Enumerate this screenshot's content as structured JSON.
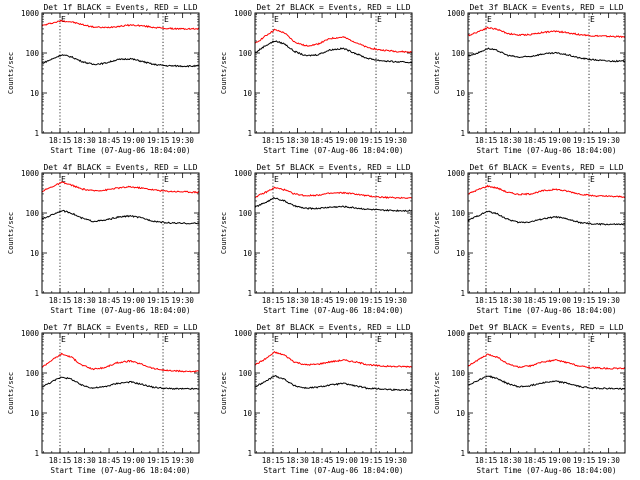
{
  "chart_data": [
    {
      "type": "line",
      "title": "Det 1f BLACK = Events, RED = LLD",
      "ylabel": "Counts/sec",
      "xlabel": "Start Time (07-Aug-06 18:04:00)",
      "x_ticks": [
        "18:15",
        "18:30",
        "18:45",
        "19:00",
        "19:15",
        "19:30"
      ],
      "y_ticks": [
        "1",
        "10",
        "100",
        "1000"
      ],
      "ylim": [
        1,
        1000
      ],
      "yscale": "log",
      "x_range": [
        "18:04",
        "19:40"
      ],
      "markers": [
        {
          "x": "18:15",
          "label": "E"
        },
        {
          "x": "19:18",
          "label": "E"
        }
      ],
      "series": [
        {
          "name": "LLD",
          "color": "#ff0000",
          "x": [
            "18:04",
            "18:10",
            "18:16",
            "18:22",
            "18:28",
            "18:35",
            "18:42",
            "18:50",
            "18:58",
            "19:05",
            "19:12",
            "19:20",
            "19:30",
            "19:40"
          ],
          "y": [
            480,
            560,
            640,
            600,
            520,
            450,
            430,
            460,
            500,
            480,
            440,
            410,
            400,
            400
          ]
        },
        {
          "name": "Events",
          "color": "#000000",
          "x": [
            "18:04",
            "18:10",
            "18:16",
            "18:22",
            "18:28",
            "18:35",
            "18:42",
            "18:50",
            "18:58",
            "19:05",
            "19:12",
            "19:20",
            "19:30",
            "19:40"
          ],
          "y": [
            55,
            70,
            90,
            80,
            62,
            52,
            55,
            68,
            72,
            62,
            52,
            48,
            47,
            47
          ]
        }
      ]
    },
    {
      "type": "line",
      "title": "Det 2f BLACK = Events, RED = LLD",
      "ylabel": "Counts/sec",
      "xlabel": "Start Time (07-Aug-06 18:04:00)",
      "x_ticks": [
        "18:15",
        "18:30",
        "18:45",
        "19:00",
        "19:15",
        "19:30"
      ],
      "y_ticks": [
        "1",
        "10",
        "100",
        "1000"
      ],
      "ylim": [
        1,
        1000
      ],
      "yscale": "log",
      "x_range": [
        "18:04",
        "19:40"
      ],
      "markers": [
        {
          "x": "18:15",
          "label": "E"
        },
        {
          "x": "19:18",
          "label": "E"
        }
      ],
      "series": [
        {
          "name": "LLD",
          "color": "#ff0000",
          "x": [
            "18:04",
            "18:10",
            "18:16",
            "18:22",
            "18:28",
            "18:35",
            "18:42",
            "18:50",
            "18:58",
            "19:05",
            "19:12",
            "19:20",
            "19:30",
            "19:40"
          ],
          "y": [
            170,
            260,
            380,
            320,
            190,
            150,
            165,
            230,
            250,
            190,
            140,
            120,
            110,
            105
          ]
        },
        {
          "name": "Events",
          "color": "#000000",
          "x": [
            "18:04",
            "18:10",
            "18:16",
            "18:22",
            "18:28",
            "18:35",
            "18:42",
            "18:50",
            "18:58",
            "19:05",
            "19:12",
            "19:20",
            "19:30",
            "19:40"
          ],
          "y": [
            100,
            150,
            200,
            170,
            110,
            85,
            90,
            120,
            130,
            100,
            75,
            65,
            60,
            58
          ]
        }
      ]
    },
    {
      "type": "line",
      "title": "Det 3f BLACK = Events, RED = LLD",
      "ylabel": "Counts/sec",
      "xlabel": "Start Time (07-Aug-06 18:04:00)",
      "x_ticks": [
        "18:15",
        "18:30",
        "18:45",
        "19:00",
        "19:15",
        "19:30"
      ],
      "y_ticks": [
        "1",
        "10",
        "100",
        "1000"
      ],
      "ylim": [
        1,
        1000
      ],
      "yscale": "log",
      "x_range": [
        "18:04",
        "19:40"
      ],
      "markers": [
        {
          "x": "18:15",
          "label": "E"
        },
        {
          "x": "19:18",
          "label": "E"
        }
      ],
      "series": [
        {
          "name": "LLD",
          "color": "#ff0000",
          "x": [
            "18:04",
            "18:10",
            "18:16",
            "18:22",
            "18:28",
            "18:35",
            "18:42",
            "18:50",
            "18:58",
            "19:05",
            "19:12",
            "19:20",
            "19:30",
            "19:40"
          ],
          "y": [
            270,
            340,
            430,
            390,
            310,
            280,
            290,
            330,
            350,
            320,
            290,
            270,
            260,
            255
          ]
        },
        {
          "name": "Events",
          "color": "#000000",
          "x": [
            "18:04",
            "18:10",
            "18:16",
            "18:22",
            "18:28",
            "18:35",
            "18:42",
            "18:50",
            "18:58",
            "19:05",
            "19:12",
            "19:20",
            "19:30",
            "19:40"
          ],
          "y": [
            85,
            100,
            130,
            115,
            88,
            78,
            82,
            95,
            100,
            90,
            75,
            68,
            63,
            62
          ]
        }
      ]
    },
    {
      "type": "line",
      "title": "Det 4f BLACK = Events, RED = LLD",
      "ylabel": "Counts/sec",
      "xlabel": "Start Time (07-Aug-06 18:04:00)",
      "x_ticks": [
        "18:15",
        "18:30",
        "18:45",
        "19:00",
        "19:15",
        "19:30"
      ],
      "y_ticks": [
        "1",
        "10",
        "100",
        "1000"
      ],
      "ylim": [
        1,
        1000
      ],
      "yscale": "log",
      "x_range": [
        "18:04",
        "19:40"
      ],
      "markers": [
        {
          "x": "18:15",
          "label": "E"
        },
        {
          "x": "19:18",
          "label": "E"
        }
      ],
      "series": [
        {
          "name": "LLD",
          "color": "#ff0000",
          "x": [
            "18:04",
            "18:10",
            "18:16",
            "18:22",
            "18:28",
            "18:35",
            "18:42",
            "18:50",
            "18:58",
            "19:05",
            "19:12",
            "19:20",
            "19:30",
            "19:40"
          ],
          "y": [
            350,
            450,
            580,
            500,
            400,
            360,
            370,
            420,
            450,
            420,
            380,
            350,
            340,
            330
          ]
        },
        {
          "name": "Events",
          "color": "#000000",
          "x": [
            "18:04",
            "18:10",
            "18:16",
            "18:22",
            "18:28",
            "18:35",
            "18:42",
            "18:50",
            "18:58",
            "19:05",
            "19:12",
            "19:20",
            "19:30",
            "19:40"
          ],
          "y": [
            70,
            90,
            115,
            100,
            75,
            62,
            65,
            78,
            85,
            75,
            63,
            57,
            55,
            55
          ]
        }
      ]
    },
    {
      "type": "line",
      "title": "Det 5f BLACK = Events, RED = LLD",
      "ylabel": "Counts/sec",
      "xlabel": "Start Time (07-Aug-06 18:04:00)",
      "x_ticks": [
        "18:15",
        "18:30",
        "18:45",
        "19:00",
        "19:15",
        "19:30"
      ],
      "y_ticks": [
        "1",
        "10",
        "100",
        "1000"
      ],
      "ylim": [
        1,
        1000
      ],
      "yscale": "log",
      "x_range": [
        "18:04",
        "19:40"
      ],
      "markers": [
        {
          "x": "18:15",
          "label": "E"
        },
        {
          "x": "19:18",
          "label": "E"
        }
      ],
      "series": [
        {
          "name": "LLD",
          "color": "#ff0000",
          "x": [
            "18:04",
            "18:10",
            "18:16",
            "18:22",
            "18:28",
            "18:35",
            "18:42",
            "18:50",
            "18:58",
            "19:05",
            "19:12",
            "19:20",
            "19:30",
            "19:40"
          ],
          "y": [
            250,
            320,
            430,
            380,
            300,
            270,
            280,
            310,
            320,
            300,
            270,
            250,
            240,
            240
          ]
        },
        {
          "name": "Events",
          "color": "#000000",
          "x": [
            "18:04",
            "18:10",
            "18:16",
            "18:22",
            "18:28",
            "18:35",
            "18:42",
            "18:50",
            "18:58",
            "19:05",
            "19:12",
            "19:20",
            "19:30",
            "19:40"
          ],
          "y": [
            140,
            180,
            240,
            200,
            150,
            130,
            130,
            140,
            145,
            135,
            125,
            118,
            115,
            115
          ]
        }
      ]
    },
    {
      "type": "line",
      "title": "Det 6f BLACK = Events, RED = LLD",
      "ylabel": "Counts/sec",
      "xlabel": "Start Time (07-Aug-06 18:04:00)",
      "x_ticks": [
        "18:15",
        "18:30",
        "18:45",
        "19:00",
        "19:15",
        "19:30"
      ],
      "y_ticks": [
        "1",
        "10",
        "100",
        "1000"
      ],
      "ylim": [
        1,
        1000
      ],
      "yscale": "log",
      "x_range": [
        "18:04",
        "19:40"
      ],
      "markers": [
        {
          "x": "18:15",
          "label": "E"
        },
        {
          "x": "19:18",
          "label": "E"
        }
      ],
      "series": [
        {
          "name": "LLD",
          "color": "#ff0000",
          "x": [
            "18:04",
            "18:10",
            "18:16",
            "18:22",
            "18:28",
            "18:35",
            "18:42",
            "18:50",
            "18:58",
            "19:05",
            "19:12",
            "19:20",
            "19:30",
            "19:40"
          ],
          "y": [
            300,
            380,
            470,
            420,
            330,
            290,
            300,
            360,
            390,
            350,
            300,
            270,
            260,
            255
          ]
        },
        {
          "name": "Events",
          "color": "#000000",
          "x": [
            "18:04",
            "18:10",
            "18:16",
            "18:22",
            "18:28",
            "18:35",
            "18:42",
            "18:50",
            "18:58",
            "19:05",
            "19:12",
            "19:20",
            "19:30",
            "19:40"
          ],
          "y": [
            65,
            85,
            110,
            95,
            70,
            58,
            60,
            72,
            80,
            70,
            58,
            53,
            52,
            52
          ]
        }
      ]
    },
    {
      "type": "line",
      "title": "Det 7f BLACK = Events, RED = LLD",
      "ylabel": "Counts/sec",
      "xlabel": "Start Time (07-Aug-06 18:04:00)",
      "x_ticks": [
        "18:15",
        "18:30",
        "18:45",
        "19:00",
        "19:15",
        "19:30"
      ],
      "y_ticks": [
        "1",
        "10",
        "100",
        "1000"
      ],
      "ylim": [
        1,
        1000
      ],
      "yscale": "log",
      "x_range": [
        "18:04",
        "19:40"
      ],
      "markers": [
        {
          "x": "18:15",
          "label": "E"
        },
        {
          "x": "19:18",
          "label": "E"
        }
      ],
      "series": [
        {
          "name": "LLD",
          "color": "#ff0000",
          "x": [
            "18:04",
            "18:10",
            "18:16",
            "18:22",
            "18:28",
            "18:35",
            "18:42",
            "18:50",
            "18:58",
            "19:05",
            "19:12",
            "19:20",
            "19:30",
            "19:40"
          ],
          "y": [
            140,
            210,
            300,
            250,
            160,
            125,
            135,
            180,
            200,
            165,
            130,
            115,
            110,
            110
          ]
        },
        {
          "name": "Events",
          "color": "#000000",
          "x": [
            "18:04",
            "18:10",
            "18:16",
            "18:22",
            "18:28",
            "18:35",
            "18:42",
            "18:50",
            "18:58",
            "19:05",
            "19:12",
            "19:20",
            "19:30",
            "19:40"
          ],
          "y": [
            45,
            60,
            80,
            70,
            50,
            42,
            45,
            55,
            60,
            52,
            44,
            41,
            40,
            40
          ]
        }
      ]
    },
    {
      "type": "line",
      "title": "Det 8f BLACK = Events, RED = LLD",
      "ylabel": "Counts/sec",
      "xlabel": "Start Time (07-Aug-06 18:04:00)",
      "x_ticks": [
        "18:15",
        "18:30",
        "18:45",
        "19:00",
        "19:15",
        "19:30"
      ],
      "y_ticks": [
        "1",
        "10",
        "100",
        "1000"
      ],
      "ylim": [
        1,
        1000
      ],
      "yscale": "log",
      "x_range": [
        "18:04",
        "19:40"
      ],
      "markers": [
        {
          "x": "18:15",
          "label": "E"
        },
        {
          "x": "19:18",
          "label": "E"
        }
      ],
      "series": [
        {
          "name": "LLD",
          "color": "#ff0000",
          "x": [
            "18:04",
            "18:10",
            "18:16",
            "18:22",
            "18:28",
            "18:35",
            "18:42",
            "18:50",
            "18:58",
            "19:05",
            "19:12",
            "19:20",
            "19:30",
            "19:40"
          ],
          "y": [
            160,
            220,
            330,
            280,
            190,
            160,
            165,
            190,
            210,
            190,
            165,
            150,
            145,
            145
          ]
        },
        {
          "name": "Events",
          "color": "#000000",
          "x": [
            "18:04",
            "18:10",
            "18:16",
            "18:22",
            "18:28",
            "18:35",
            "18:42",
            "18:50",
            "18:58",
            "19:05",
            "19:12",
            "19:20",
            "19:30",
            "19:40"
          ],
          "y": [
            45,
            60,
            85,
            70,
            48,
            42,
            44,
            50,
            55,
            48,
            42,
            40,
            38,
            38
          ]
        }
      ]
    },
    {
      "type": "line",
      "title": "Det 9f BLACK = Events, RED = LLD",
      "ylabel": "Counts/sec",
      "xlabel": "Start Time (07-Aug-06 18:04:00)",
      "x_ticks": [
        "18:15",
        "18:30",
        "18:45",
        "19:00",
        "19:15",
        "19:30"
      ],
      "y_ticks": [
        "1",
        "10",
        "100",
        "1000"
      ],
      "ylim": [
        1,
        1000
      ],
      "yscale": "log",
      "x_range": [
        "18:04",
        "19:40"
      ],
      "markers": [
        {
          "x": "18:15",
          "label": "E"
        },
        {
          "x": "19:18",
          "label": "E"
        }
      ],
      "series": [
        {
          "name": "LLD",
          "color": "#ff0000",
          "x": [
            "18:04",
            "18:10",
            "18:16",
            "18:22",
            "18:28",
            "18:35",
            "18:42",
            "18:50",
            "18:58",
            "19:05",
            "19:12",
            "19:20",
            "19:30",
            "19:40"
          ],
          "y": [
            150,
            210,
            290,
            250,
            170,
            140,
            150,
            190,
            210,
            180,
            150,
            135,
            130,
            130
          ]
        },
        {
          "name": "Events",
          "color": "#000000",
          "x": [
            "18:04",
            "18:10",
            "18:16",
            "18:22",
            "18:28",
            "18:35",
            "18:42",
            "18:50",
            "18:58",
            "19:05",
            "19:12",
            "19:20",
            "19:30",
            "19:40"
          ],
          "y": [
            50,
            65,
            85,
            72,
            55,
            45,
            48,
            58,
            62,
            55,
            46,
            42,
            41,
            40
          ]
        }
      ]
    }
  ]
}
